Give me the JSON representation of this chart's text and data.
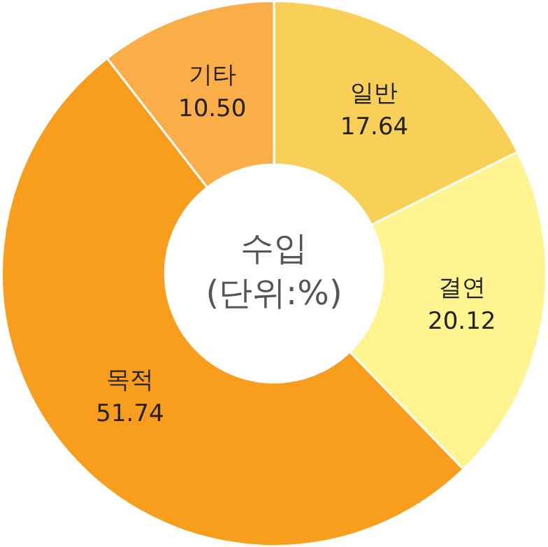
{
  "chart_data": {
    "type": "donut",
    "title": "수입",
    "subtitle": "(단위:%)",
    "categories": [
      "일반",
      "결연",
      "목적",
      "기타"
    ],
    "values": [
      17.64,
      20.12,
      51.74,
      10.5
    ],
    "value_labels": [
      "17.64",
      "20.12",
      "51.74",
      "10.50"
    ],
    "colors": [
      "#f9d057",
      "#fff48f",
      "#f99d1c",
      "#fbad47"
    ],
    "legend": false
  }
}
